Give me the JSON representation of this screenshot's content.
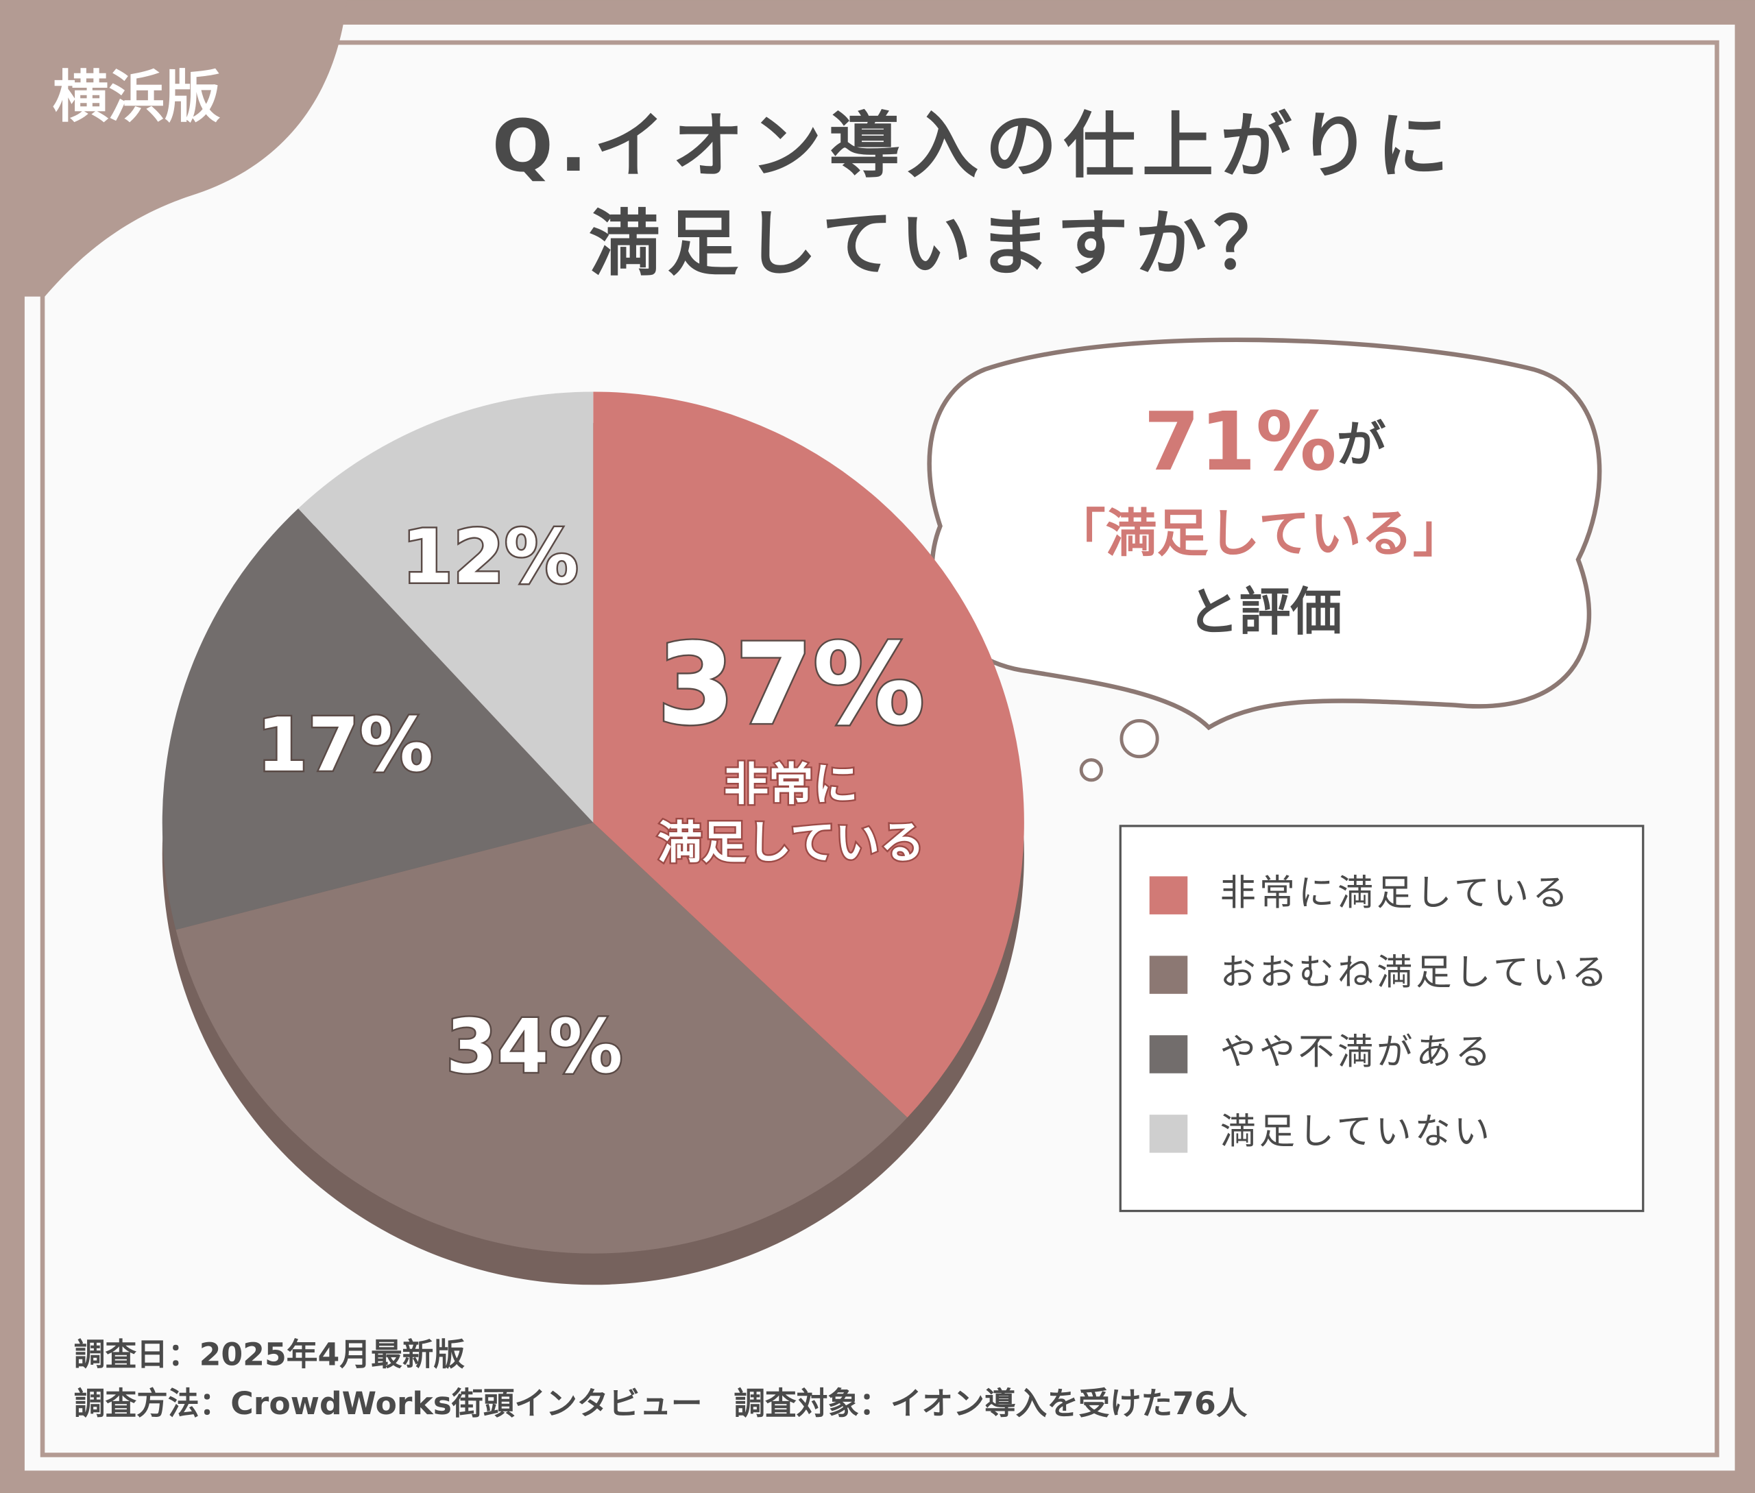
{
  "badge": "横浜版",
  "chart_data": {
    "type": "pie",
    "title_lines": [
      "Q.イオン導入の仕上がりに",
      "満足していますか？"
    ],
    "categories": [
      "非常に満足している",
      "おおむね満足している",
      "やや不満がある",
      "満足していない"
    ],
    "values": [
      37,
      34,
      17,
      12
    ],
    "value_labels": [
      "37%",
      "34%",
      "17%",
      "12%"
    ],
    "colors": [
      "#d17a76",
      "#8c7873",
      "#726d6c",
      "#cfcfcf"
    ],
    "slice_note": [
      "非常に",
      "満足している"
    ],
    "callout": {
      "highlight": "71%",
      "suffix": "が",
      "quote": "「満足している」",
      "tail": "と評価"
    }
  },
  "notes": [
    "調査日：2025年4月最新版",
    "調査方法：CrowdWorks街頭インタビュー　調査対象：イオン導入を受けた76人"
  ]
}
